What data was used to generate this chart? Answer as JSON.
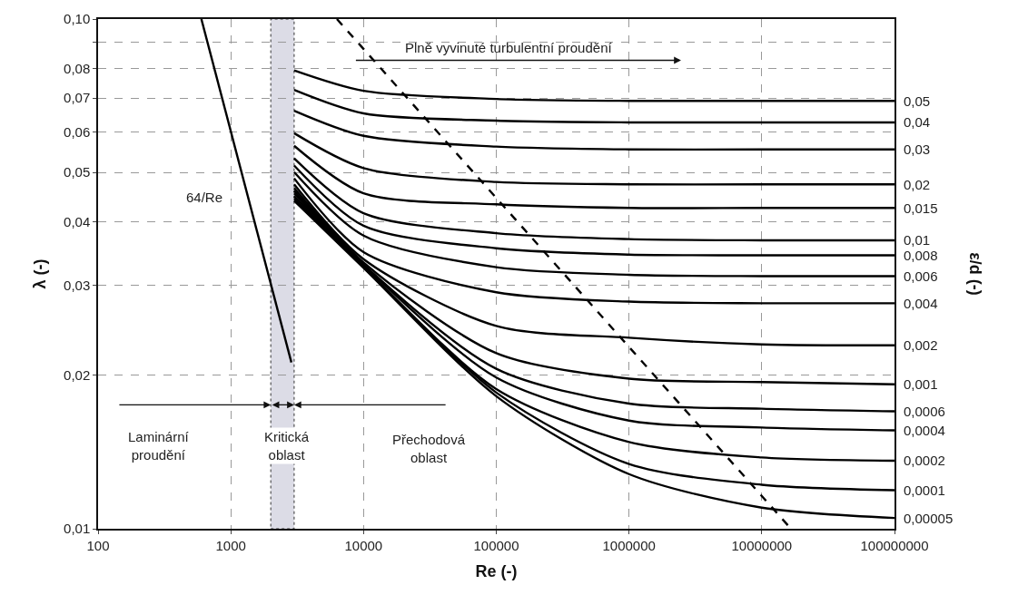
{
  "chart_data": {
    "type": "line",
    "xlabel": "Re (-)",
    "ylabel": "λ (-)",
    "y2label": "ε/d (-)",
    "log": "xy",
    "grid": true,
    "xlim": [
      100,
      100000000
    ],
    "xticks": [
      100,
      1000,
      10000,
      100000,
      1000000,
      10000000,
      100000000
    ],
    "ylim": [
      0.01,
      0.1
    ],
    "yticks": [
      {
        "value": 0.01,
        "label": "0,01"
      },
      {
        "value": 0.02,
        "label": "0,02"
      },
      {
        "value": 0.03,
        "label": "0,03"
      },
      {
        "value": 0.04,
        "label": "0,04"
      },
      {
        "value": 0.05,
        "label": "0,05"
      },
      {
        "value": 0.06,
        "label": "0,06"
      },
      {
        "value": 0.07,
        "label": "0,07"
      },
      {
        "value": 0.08,
        "label": "0,08"
      },
      {
        "value": 0.09,
        "label": null
      },
      {
        "value": 0.1,
        "label": "0,10"
      }
    ],
    "x": [
      3000,
      10000,
      100000,
      1000000,
      10000000,
      100000000
    ],
    "series": [
      {
        "name": "0,05",
        "color": "#000000",
        "values": [
          0.0793,
          0.0723,
          0.0697,
          0.0691,
          0.0691,
          0.0691
        ]
      },
      {
        "name": "0,04",
        "color": "#000000",
        "values": [
          0.0726,
          0.0653,
          0.0632,
          0.0627,
          0.0627,
          0.0627
        ]
      },
      {
        "name": "0,03",
        "color": "#000000",
        "values": [
          0.0661,
          0.059,
          0.0562,
          0.0555,
          0.0555,
          0.0555
        ]
      },
      {
        "name": "0,02",
        "color": "#000000",
        "values": [
          0.0597,
          0.051,
          0.0479,
          0.0474,
          0.0474,
          0.0474
        ]
      },
      {
        "name": "0,015",
        "color": "#000000",
        "values": [
          0.0564,
          0.0455,
          0.0433,
          0.0426,
          0.0426,
          0.0426
        ]
      },
      {
        "name": "0,01",
        "color": "#000000",
        "values": [
          0.0533,
          0.0416,
          0.038,
          0.037,
          0.0368,
          0.0368
        ]
      },
      {
        "name": "0,008",
        "color": "#000000",
        "values": [
          0.0516,
          0.0393,
          0.0355,
          0.0345,
          0.0344,
          0.0344
        ]
      },
      {
        "name": "0,006",
        "color": "#000000",
        "values": [
          0.0501,
          0.0376,
          0.0326,
          0.0315,
          0.0313,
          0.0313
        ]
      },
      {
        "name": "0,004",
        "color": "#000000",
        "values": [
          0.0487,
          0.0349,
          0.0291,
          0.0279,
          0.0277,
          0.0277
        ]
      },
      {
        "name": "0,002",
        "color": "#000000",
        "values": [
          0.0474,
          0.0338,
          0.025,
          0.0237,
          0.023,
          0.0229
        ]
      },
      {
        "name": "0,001",
        "color": "#000000",
        "values": [
          0.0466,
          0.0333,
          0.0221,
          0.0197,
          0.0194,
          0.0192
        ]
      },
      {
        "name": "0,0006",
        "color": "#000000",
        "values": [
          0.046,
          0.033,
          0.0206,
          0.0176,
          0.0172,
          0.017
        ]
      },
      {
        "name": "0,0004",
        "color": "#000000",
        "values": [
          0.0455,
          0.0329,
          0.0198,
          0.0163,
          0.0158,
          0.0156
        ]
      },
      {
        "name": "0,0002",
        "color": "#000000",
        "values": [
          0.0449,
          0.0327,
          0.0188,
          0.0148,
          0.0138,
          0.0136
        ]
      },
      {
        "name": "0,0001",
        "color": "#000000",
        "values": [
          0.0444,
          0.0326,
          0.0185,
          0.0134,
          0.0122,
          0.0119
        ]
      },
      {
        "name": "0,00005",
        "color": "#000000",
        "values": [
          0.044,
          0.0325,
          0.0182,
          0.0128,
          0.011,
          0.0105
        ]
      },
      {
        "color": "#000000",
        "x": [
          600,
          2860
        ],
        "values": [
          0.1,
          0.0212
        ]
      },
      {
        "color": "#000000",
        "line_style": "dashed",
        "x": [
          6300,
          16600000
        ],
        "values": [
          0.1,
          0.01
        ]
      }
    ],
    "bands": [
      {
        "axis": "x",
        "from": 2000,
        "to": 3000,
        "color": "#dcdce6"
      }
    ],
    "annotations": [
      "64/Re",
      "Plně vyvinuté turbulentní proudění",
      "Laminární\nproudění",
      "Kritická\noblast",
      "Přechodová\noblast"
    ]
  }
}
